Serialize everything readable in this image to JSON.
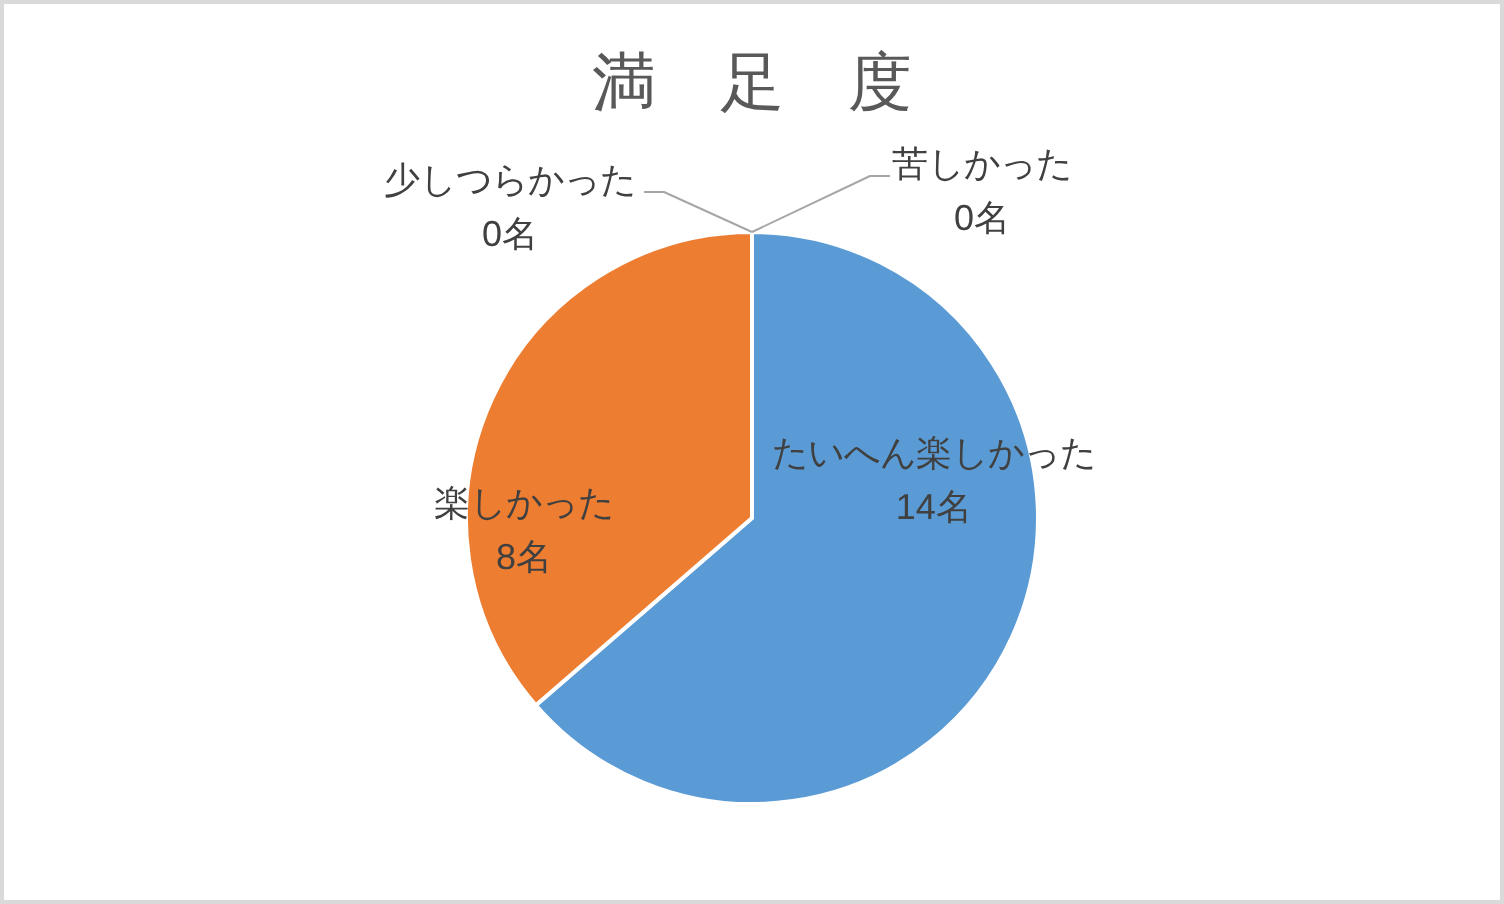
{
  "chart_data": {
    "type": "pie",
    "title": "満　足　度",
    "categories": [
      "たいへん楽しかった",
      "楽しかった",
      "少しつらかった",
      "苦しかった"
    ],
    "values": [
      14,
      8,
      0,
      0
    ],
    "value_labels": [
      "14名",
      "8名",
      "0名",
      "0名"
    ],
    "colors": [
      "#5b9bd5",
      "#ed7d31",
      null,
      null
    ]
  }
}
